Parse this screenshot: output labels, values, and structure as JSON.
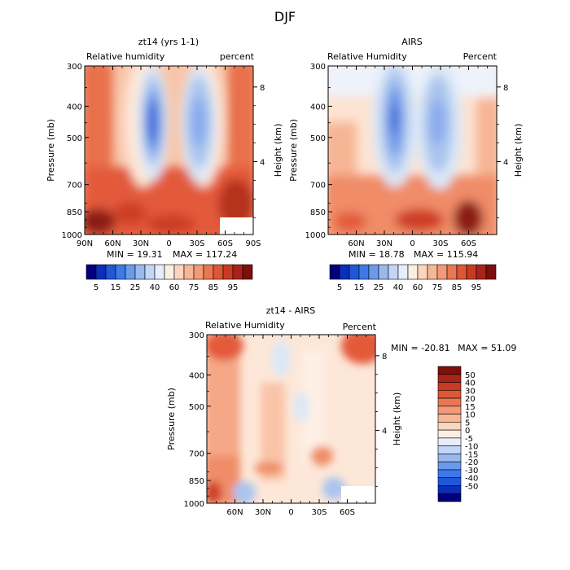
{
  "figure": {
    "title": "DJF"
  },
  "chart_data": [
    {
      "type": "heatmap",
      "title": "zt14 (yrs 1-1)",
      "variable": "Relative humidity",
      "units": "percent",
      "xlabel": "",
      "ylabel": "Pressure (mb)",
      "ylabel_right": "Height (km)",
      "x_ticks": [
        "90N",
        "60N",
        "30N",
        "0",
        "30S",
        "60S",
        "90S"
      ],
      "y_ticks": [
        "300",
        "400",
        "500",
        "700",
        "850",
        "1000"
      ],
      "y_ticks_right": [
        "8",
        "4"
      ],
      "stats": {
        "min_label": "MIN =",
        "min": "19.31",
        "max_label": "MAX =",
        "max": "117.24"
      },
      "colorbar": {
        "levels": [
          5,
          10,
          15,
          20,
          25,
          30,
          40,
          50,
          60,
          65,
          70,
          75,
          80,
          85,
          90,
          95,
          100
        ],
        "labels": [
          "5",
          "15",
          "25",
          "40",
          "60",
          "75",
          "85",
          "95"
        ],
        "colors": [
          "#02007a",
          "#0b2fb6",
          "#1f57d6",
          "#3c7aea",
          "#6a9ae8",
          "#98b8ee",
          "#c3d6f5",
          "#e6eefa",
          "#fdeee2",
          "#fbd5bd",
          "#f7b797",
          "#f29a76",
          "#ea7754",
          "#df5637",
          "#c83a23",
          "#a9231a",
          "#7e0f0c"
        ]
      }
    },
    {
      "type": "heatmap",
      "title": "AIRS",
      "variable": "Relative Humidity",
      "units": "Percent",
      "xlabel": "",
      "ylabel": "Pressure (mb)",
      "ylabel_right": "Height (km)",
      "x_ticks": [
        "60N",
        "30N",
        "0",
        "30S",
        "60S"
      ],
      "y_ticks": [
        "300",
        "400",
        "500",
        "700",
        "850",
        "1000"
      ],
      "y_ticks_right": [
        "8",
        "4"
      ],
      "stats": {
        "min_label": "MIN =",
        "min": "18.78",
        "max_label": "MAX =",
        "max": "115.94"
      },
      "colorbar": {
        "levels": [
          5,
          10,
          15,
          20,
          25,
          30,
          40,
          50,
          60,
          65,
          70,
          75,
          80,
          85,
          90,
          95,
          100
        ],
        "labels": [
          "5",
          "15",
          "25",
          "40",
          "60",
          "75",
          "85",
          "95"
        ],
        "colors": [
          "#02007a",
          "#0b2fb6",
          "#1f57d6",
          "#3c7aea",
          "#6a9ae8",
          "#98b8ee",
          "#c3d6f5",
          "#e6eefa",
          "#fdeee2",
          "#fbd5bd",
          "#f7b797",
          "#f29a76",
          "#ea7754",
          "#df5637",
          "#c83a23",
          "#a9231a",
          "#7e0f0c"
        ]
      }
    },
    {
      "type": "heatmap",
      "title": "zt14 - AIRS",
      "variable": "Relative Humidity",
      "units": "Percent",
      "xlabel": "",
      "ylabel": "Pressure (mb)",
      "ylabel_right": "Height (km)",
      "x_ticks": [
        "60N",
        "30N",
        "0",
        "30S",
        "60S"
      ],
      "y_ticks": [
        "300",
        "400",
        "500",
        "700",
        "850",
        "1000"
      ],
      "y_ticks_right": [
        "8",
        "4"
      ],
      "stats": {
        "min_label": "MIN =",
        "min": "-20.81",
        "max_label": "MAX =",
        "max": "51.09"
      },
      "colorbar": {
        "labels": [
          "50",
          "40",
          "30",
          "20",
          "15",
          "10",
          "5",
          "0",
          "-5",
          "-10",
          "-15",
          "-20",
          "-30",
          "-40",
          "-50"
        ],
        "colors": [
          "#7e0f0c",
          "#a9231a",
          "#c83a23",
          "#df5637",
          "#ea7754",
          "#f29a76",
          "#f7b797",
          "#fbd5bd",
          "#fdeee2",
          "#e6eefa",
          "#c3d6f5",
          "#98b8ee",
          "#6a9ae8",
          "#3c7aea",
          "#1f57d6",
          "#0b2fb6",
          "#02007a"
        ]
      }
    }
  ]
}
